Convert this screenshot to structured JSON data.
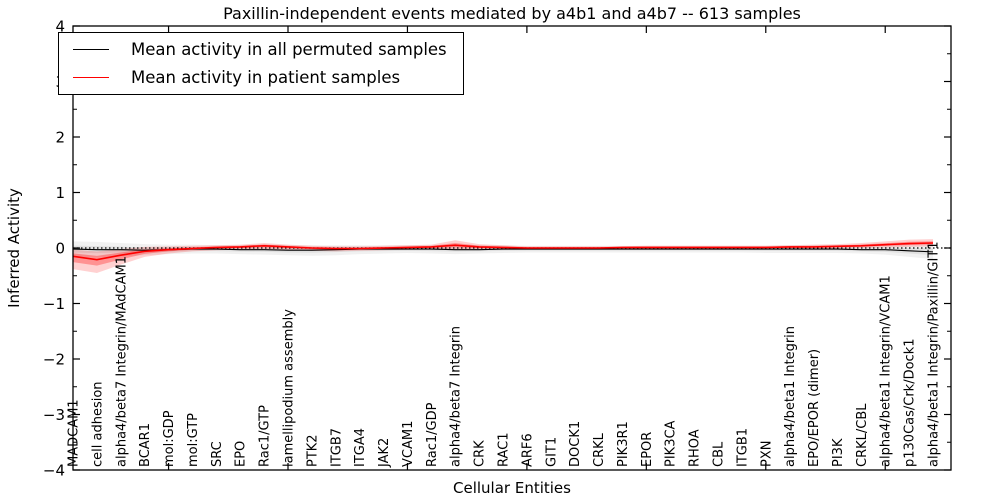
{
  "chart_data": {
    "type": "line",
    "title": "Paxillin-independent events mediated by a4b1 and a4b7 -- 613 samples",
    "xlabel": "Cellular Entities",
    "ylabel": "Inferred Activity",
    "ylim": [
      -4,
      4
    ],
    "y_major_ticks": [
      4,
      3,
      2,
      1,
      0,
      -1,
      -2,
      -3,
      -4
    ],
    "y_tick_labels": [
      "4",
      "3",
      "2",
      "1",
      "0",
      "−1",
      "−2",
      "−3",
      "−4"
    ],
    "y_minor_step": 0.5,
    "x_major_tick_indices": [
      4,
      9,
      14,
      19,
      24,
      29,
      34
    ],
    "grid": "off",
    "legend_position": "upper left",
    "reference_line": {
      "y": 0,
      "style": "dotted",
      "color": "#000000"
    },
    "categories": [
      "MADCAM1",
      "cell adhesion",
      "alpha4/beta7 Integrin/MAdCAM1",
      "BCAR1",
      "mol:GDP",
      "mol:GTP",
      "SRC",
      "EPO",
      "Rac1/GTP",
      "lamellipodium assembly",
      "PTK2",
      "ITGB7",
      "ITGA4",
      "JAK2",
      "VCAM1",
      "Rac1/GDP",
      "alpha4/beta7 Integrin",
      "CRK",
      "RAC1",
      "ARF6",
      "GIT1",
      "DOCK1",
      "CRKL",
      "PIK3R1",
      "EPOR",
      "PIK3CA",
      "RHOA",
      "CBL",
      "ITGB1",
      "PXN",
      "alpha4/beta1 Integrin",
      "EPO/EPOR (dimer)",
      "PI3K",
      "CRKL/CBL",
      "alpha4/beta1 Integrin/VCAM1",
      "p130Cas/Crk/Dock1",
      "alpha4/beta1 Integrin/Paxillin/GIT1"
    ],
    "series": [
      {
        "name": "Mean activity in all permuted samples",
        "color": "#000000",
        "band_color": "#888888",
        "values": [
          -0.02,
          -0.03,
          -0.03,
          -0.04,
          -0.03,
          -0.02,
          -0.02,
          -0.03,
          -0.03,
          -0.04,
          -0.04,
          -0.03,
          -0.02,
          -0.02,
          -0.02,
          -0.02,
          -0.03,
          -0.03,
          -0.02,
          -0.02,
          -0.02,
          -0.02,
          -0.02,
          -0.02,
          -0.02,
          -0.02,
          -0.02,
          -0.02,
          -0.02,
          -0.02,
          -0.02,
          -0.02,
          -0.02,
          -0.03,
          -0.03,
          -0.05,
          -0.07
        ],
        "band_upper": [
          0.12,
          0.11,
          0.09,
          0.07,
          0.06,
          0.06,
          0.05,
          0.05,
          0.06,
          0.05,
          0.05,
          0.05,
          0.05,
          0.05,
          0.05,
          0.05,
          0.06,
          0.05,
          0.05,
          0.04,
          0.04,
          0.04,
          0.04,
          0.04,
          0.04,
          0.04,
          0.04,
          0.04,
          0.04,
          0.04,
          0.05,
          0.05,
          0.05,
          0.05,
          0.06,
          0.06,
          0.07
        ],
        "band_lower": [
          -0.16,
          -0.17,
          -0.15,
          -0.13,
          -0.11,
          -0.1,
          -0.1,
          -0.11,
          -0.12,
          -0.13,
          -0.14,
          -0.13,
          -0.11,
          -0.1,
          -0.09,
          -0.1,
          -0.11,
          -0.1,
          -0.09,
          -0.08,
          -0.08,
          -0.08,
          -0.08,
          -0.08,
          -0.08,
          -0.08,
          -0.08,
          -0.08,
          -0.08,
          -0.09,
          -0.09,
          -0.09,
          -0.09,
          -0.1,
          -0.12,
          -0.16,
          -0.2
        ]
      },
      {
        "name": "Mean activity in patient samples",
        "color": "#ff0000",
        "band_color": "#ff0000",
        "values": [
          -0.15,
          -0.21,
          -0.13,
          -0.06,
          -0.03,
          -0.01,
          0.01,
          0.02,
          0.04,
          0.02,
          0.0,
          -0.01,
          -0.01,
          0.0,
          0.01,
          0.02,
          0.05,
          0.02,
          0.01,
          0.0,
          0.0,
          0.0,
          0.0,
          0.01,
          0.01,
          0.01,
          0.01,
          0.01,
          0.01,
          0.01,
          0.02,
          0.02,
          0.03,
          0.04,
          0.06,
          0.08,
          0.09
        ],
        "band_upper": [
          -0.03,
          -0.06,
          -0.02,
          0.02,
          0.03,
          0.04,
          0.05,
          0.06,
          0.09,
          0.06,
          0.04,
          0.03,
          0.03,
          0.04,
          0.05,
          0.06,
          0.14,
          0.07,
          0.05,
          0.03,
          0.03,
          0.03,
          0.03,
          0.03,
          0.04,
          0.04,
          0.04,
          0.04,
          0.04,
          0.04,
          0.05,
          0.06,
          0.07,
          0.09,
          0.12,
          0.15,
          0.16
        ],
        "band_lower": [
          -0.38,
          -0.45,
          -0.3,
          -0.16,
          -0.1,
          -0.06,
          -0.04,
          -0.03,
          -0.02,
          -0.03,
          -0.05,
          -0.06,
          -0.05,
          -0.04,
          -0.03,
          -0.02,
          -0.03,
          -0.03,
          -0.03,
          -0.03,
          -0.03,
          -0.03,
          -0.03,
          -0.02,
          -0.02,
          -0.02,
          -0.02,
          -0.02,
          -0.02,
          -0.02,
          -0.02,
          -0.01,
          -0.01,
          0.0,
          0.01,
          0.02,
          0.03
        ]
      }
    ]
  }
}
